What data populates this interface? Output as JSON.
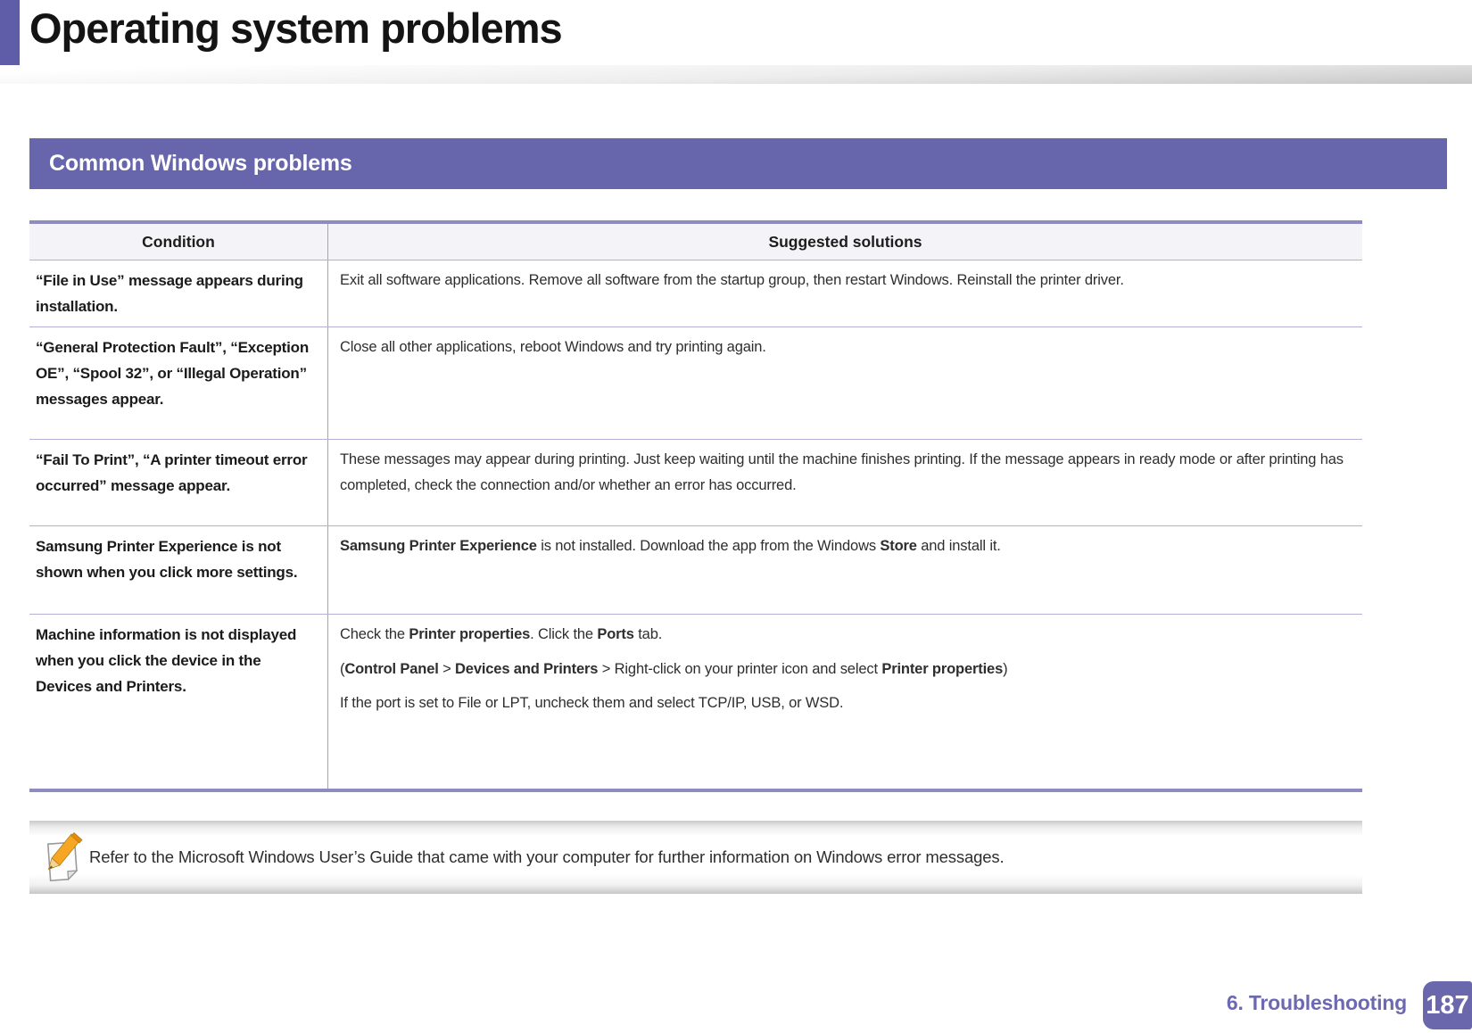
{
  "page_title": "Operating system problems",
  "section_header": "Common Windows problems",
  "table": {
    "headers": {
      "condition": "Condition",
      "solutions": "Suggested solutions"
    },
    "rows": [
      {
        "condition": "“File in Use” message appears during installation.",
        "solutions": [
          [
            {
              "text": "Exit all software applications. Remove all software from the startup group, then restart Windows. Reinstall the printer driver."
            }
          ]
        ]
      },
      {
        "condition": "“General Protection Fault”, “Exception OE”, “Spool 32”, or “Illegal Operation” messages appear.",
        "solutions": [
          [
            {
              "text": "Close all other applications, reboot Windows and try printing again."
            }
          ]
        ]
      },
      {
        "condition": "“Fail To Print”, “A printer timeout error occurred” message appear.",
        "solutions": [
          [
            {
              "text": "These messages may appear during printing. Just keep waiting until the machine finishes printing. If the message appears in ready mode or after printing has completed, check the connection and/or whether an error has occurred."
            }
          ]
        ]
      },
      {
        "condition": "Samsung Printer Experience is not shown when you click more settings.",
        "solutions": [
          [
            {
              "text": "Samsung Printer Experience",
              "bold": true
            },
            {
              "text": " is not installed. Download the app from the Windows "
            },
            {
              "text": "Store",
              "bold": true
            },
            {
              "text": " and install it."
            }
          ]
        ]
      },
      {
        "condition": "Machine information is not displayed when you click the device in the Devices and Printers.",
        "solutions": [
          [
            {
              "text": "Check the "
            },
            {
              "text": "Printer properties",
              "bold": true
            },
            {
              "text": ". Click the "
            },
            {
              "text": "Ports",
              "bold": true
            },
            {
              "text": " tab."
            }
          ],
          [
            {
              "text": "("
            },
            {
              "text": "Control Panel",
              "bold": true
            },
            {
              "text": " > "
            },
            {
              "text": "Devices and Printers",
              "bold": true
            },
            {
              "text": " > Right-click on your printer icon and select "
            },
            {
              "text": "Printer properties",
              "bold": true
            },
            {
              "text": ")"
            }
          ],
          [
            {
              "text": "If the port is set to File or LPT, uncheck them and select TCP/IP, USB, or WSD."
            }
          ]
        ]
      }
    ]
  },
  "note": {
    "text": "Refer to the Microsoft Windows User’s Guide that came with your computer for further information on Windows error messages."
  },
  "footer": {
    "chapter_label": "6.  Troubleshooting",
    "page_number": "187"
  },
  "colors": {
    "accent_purple": "#6765ab",
    "stripe_purple": "#5f5ca8",
    "table_border_purple": "#8e8bc1",
    "table_line_purple": "#b3b0d8",
    "footer_purple": "#6c69b0"
  }
}
